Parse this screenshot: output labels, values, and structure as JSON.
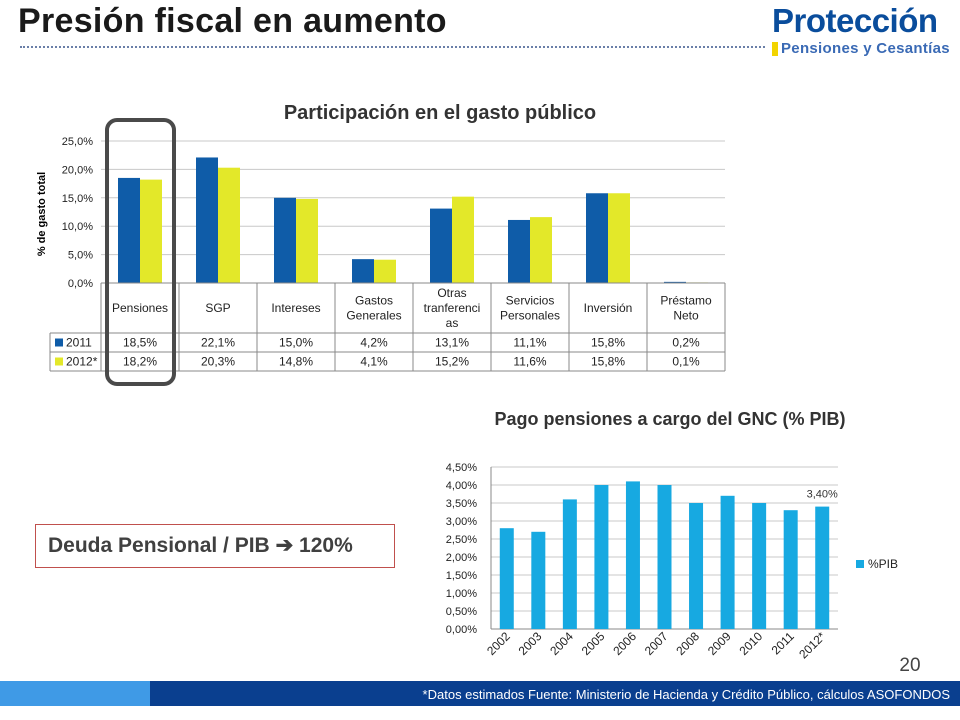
{
  "slide": {
    "title": "Presión fiscal en aumento",
    "page_number": "20"
  },
  "logo": {
    "name": "Protección",
    "tagline": "Pensiones y Cesantías"
  },
  "callout": {
    "text": "Deuda Pensional / PIB",
    "arrow": "➔",
    "value": "120%"
  },
  "footer": {
    "text": "*Datos estimados Fuente: Ministerio de Hacienda y Crédito Público, cálculos ASOFONDOS"
  },
  "chart_data": [
    {
      "type": "bar",
      "title": "Participación en el gasto público",
      "ylabel": "% de gasto total",
      "ylim": [
        0,
        25
      ],
      "yticks": [
        "0,0%",
        "5,0%",
        "10,0%",
        "15,0%",
        "20,0%",
        "25,0%"
      ],
      "categories": [
        [
          "Pensiones"
        ],
        [
          "SGP"
        ],
        [
          "Intereses"
        ],
        [
          "Gastos",
          "Generales"
        ],
        [
          "Otras",
          "tranferenci",
          "as"
        ],
        [
          "Servicios",
          "Personales"
        ],
        [
          "Inversión"
        ],
        [
          "Préstamo",
          "Neto"
        ]
      ],
      "series": [
        {
          "name": "2011",
          "color": "#0f5ca8",
          "values": [
            18.5,
            22.1,
            15.0,
            4.2,
            13.1,
            11.1,
            15.8,
            0.2
          ],
          "labels": [
            "18,5%",
            "22,1%",
            "15,0%",
            "4,2%",
            "13,1%",
            "11,1%",
            "15,8%",
            "0,2%"
          ]
        },
        {
          "name": "2012*",
          "color": "#e3e829",
          "values": [
            18.2,
            20.3,
            14.8,
            4.1,
            15.2,
            11.6,
            15.8,
            0.1
          ],
          "labels": [
            "18,2%",
            "20,3%",
            "14,8%",
            "4,1%",
            "15,2%",
            "11,6%",
            "15,8%",
            "0,1%"
          ]
        }
      ],
      "grid": true,
      "legend": "data-table"
    },
    {
      "type": "bar",
      "title": "Pago pensiones a cargo del GNC (% PIB)",
      "ylim": [
        0,
        4.5
      ],
      "yticks": [
        "0,00%",
        "0,50%",
        "1,00%",
        "1,50%",
        "2,00%",
        "2,50%",
        "3,00%",
        "3,50%",
        "4,00%",
        "4,50%"
      ],
      "categories": [
        "2002",
        "2003",
        "2004",
        "2005",
        "2006",
        "2007",
        "2008",
        "2009",
        "2010",
        "2011",
        "2012*"
      ],
      "series": [
        {
          "name": "%PIB",
          "color": "#17a9e1",
          "values": [
            2.8,
            2.7,
            3.6,
            4.0,
            4.1,
            4.0,
            3.5,
            3.7,
            3.5,
            3.3,
            3.4
          ]
        }
      ],
      "annotations": [
        {
          "category": "2012*",
          "text": "3,40%"
        }
      ],
      "grid": true,
      "legend": "right"
    }
  ]
}
